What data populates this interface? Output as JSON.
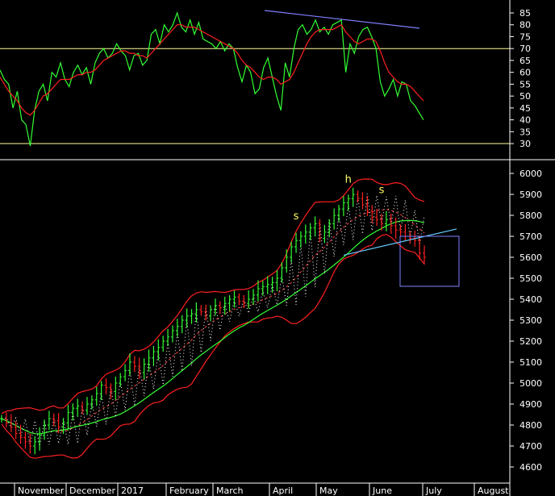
{
  "chart_data": {
    "type": "line",
    "x_axis": {
      "labels": [
        "November",
        "December",
        "2017",
        "February",
        "March",
        "April",
        "May",
        "June",
        "July",
        "August"
      ]
    },
    "panels": [
      {
        "name": "oscillator",
        "ylim": [
          27,
          89
        ],
        "yticks": [
          30,
          35,
          40,
          45,
          50,
          55,
          60,
          65,
          70,
          75,
          80,
          85
        ],
        "reference_lines": [
          70,
          30
        ],
        "series": [
          {
            "color": "#33ff33",
            "values": [
              61,
              57,
              55,
              45,
              52,
              40,
              38,
              29,
              44,
              52,
              55,
              48,
              60,
              58,
              64,
              57,
              54,
              60,
              63,
              59,
              62,
              55,
              64,
              68,
              70,
              66,
              68,
              72,
              69,
              67,
              61,
              67,
              68,
              63,
              65,
              76,
              78,
              72,
              80,
              77,
              80,
              85,
              79,
              77,
              82,
              76,
              81,
              74,
              73,
              72,
              70,
              73,
              69,
              72,
              70,
              62,
              56,
              63,
              60,
              51,
              53,
              62,
              66,
              58,
              50,
              44,
              64,
              58,
              70,
              78,
              80,
              76,
              78,
              82,
              77,
              79,
              76,
              80,
              81,
              82,
              60,
              72,
              68,
              75,
              78,
              79,
              75,
              70,
              56,
              50,
              53,
              57,
              50,
              56,
              55,
              48,
              46,
              43,
              40
            ]
          },
          {
            "color": "#ff2020",
            "values": [
              58,
              55,
              52,
              50,
              48,
              45,
              43,
              42,
              44,
              47,
              50,
              51,
              53,
              55,
              57,
              57,
              57,
              58,
              59,
              59,
              60,
              60,
              61,
              63,
              65,
              66,
              67,
              68,
              69,
              69,
              68,
              68,
              67,
              67,
              66,
              68,
              70,
              72,
              74,
              76,
              78,
              80,
              80,
              79,
              79,
              79,
              78,
              77,
              76,
              75,
              74,
              73,
              72,
              71,
              70,
              68,
              65,
              63,
              62,
              60,
              58,
              57,
              58,
              58,
              57,
              55,
              56,
              57,
              60,
              64,
              68,
              72,
              75,
              77,
              78,
              78,
              78,
              78,
              79,
              80,
              77,
              75,
              73,
              72,
              73,
              74,
              74,
              73,
              69,
              64,
              60,
              58,
              56,
              55,
              55,
              54,
              52,
              50,
              48
            ]
          }
        ]
      },
      {
        "name": "price",
        "ylim": [
          4560,
          6040
        ],
        "yticks": [
          4600,
          4700,
          4800,
          4900,
          5000,
          5100,
          5200,
          5300,
          5400,
          5500,
          5600,
          5700,
          5800,
          5900,
          6000
        ],
        "annotations": [
          {
            "text": "s",
            "x": 62,
            "y": 5780
          },
          {
            "text": "h",
            "x": 73,
            "y": 5955
          },
          {
            "text": "s",
            "x": 80,
            "y": 5905
          }
        ],
        "series_close": [
          4830,
          4810,
          4790,
          4760,
          4740,
          4720,
          4700,
          4720,
          4750,
          4800,
          4830,
          4820,
          4790,
          4810,
          4860,
          4880,
          4890,
          4870,
          4900,
          4920,
          4950,
          4990,
          4980,
          4960,
          5000,
          5030,
          5060,
          5100,
          5080,
          5050,
          5090,
          5120,
          5150,
          5170,
          5200,
          5220,
          5250,
          5270,
          5300,
          5320,
          5330,
          5350,
          5340,
          5320,
          5350,
          5370,
          5360,
          5380,
          5400,
          5410,
          5390,
          5380,
          5400,
          5420,
          5450,
          5460,
          5470,
          5480,
          5500,
          5550,
          5600,
          5650,
          5680,
          5700,
          5720,
          5740,
          5760,
          5690,
          5720,
          5760,
          5800,
          5830,
          5860,
          5880,
          5900,
          5880,
          5850,
          5820,
          5790,
          5780,
          5760,
          5780,
          5750,
          5730,
          5720,
          5700,
          5690,
          5680,
          5620,
          5600
        ]
      }
    ]
  }
}
